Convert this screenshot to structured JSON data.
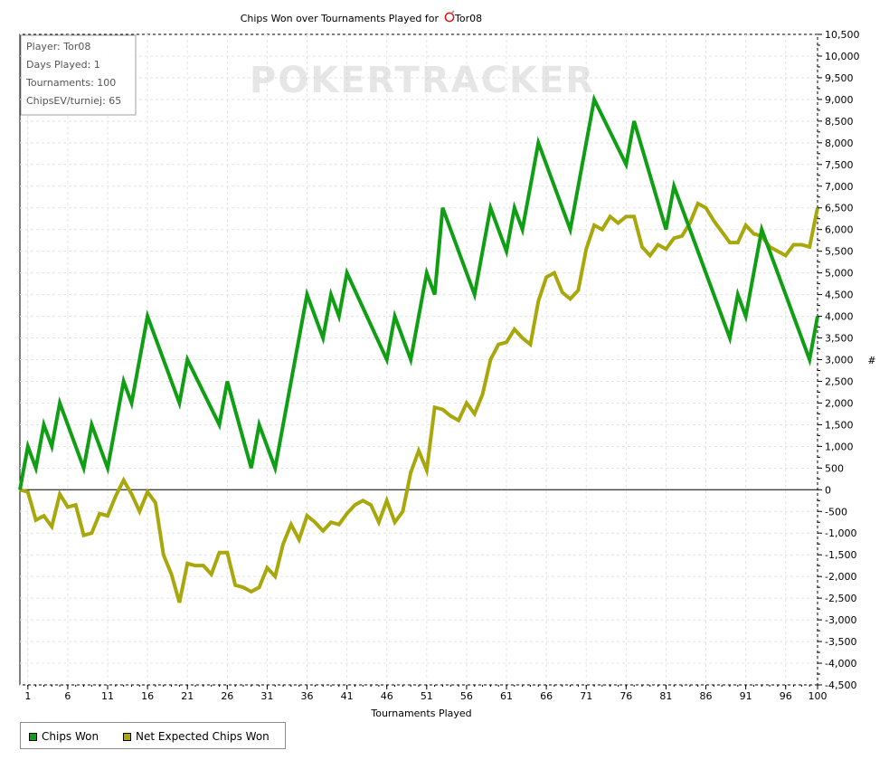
{
  "chart_data": {
    "type": "line",
    "title": "Chips Won over Tournaments Played for",
    "player_name": "Tor08",
    "watermark": "POKERTRACKER",
    "xlabel": "Tournaments Played",
    "ylabel": "#",
    "xlim": [
      0,
      100
    ],
    "ylim": [
      -4500,
      10500
    ],
    "x_ticks": [
      1,
      6,
      11,
      16,
      21,
      26,
      31,
      36,
      41,
      46,
      51,
      56,
      61,
      66,
      71,
      76,
      81,
      86,
      91,
      96,
      100
    ],
    "y_ticks": [
      10500,
      10000,
      9500,
      9000,
      8500,
      8000,
      7500,
      7000,
      6500,
      6000,
      5500,
      5000,
      4500,
      4000,
      3500,
      3000,
      2500,
      2000,
      1500,
      1000,
      500,
      0,
      -500,
      -1000,
      -1500,
      -2000,
      -2500,
      -3000,
      -3500,
      -4000,
      -4500
    ],
    "y_tick_labels": [
      "10,500",
      "10,000",
      "9,500",
      "9,000",
      "8,500",
      "8,000",
      "7,500",
      "7,000",
      "6,500",
      "6,000",
      "5,500",
      "5,000",
      "4,500",
      "4,000",
      "3,500",
      "3,000",
      "2,500",
      "2,000",
      "1,500",
      "1,000",
      "500",
      "0",
      "-500",
      "-1,000",
      "-1,500",
      "-2,000",
      "-2,500",
      "-3,000",
      "-3,500",
      "-4,000",
      "-4,500"
    ],
    "grid": true,
    "legend_position": "bottom-left",
    "series": [
      {
        "name": "Chips Won",
        "color": "#0f9e14",
        "x": [
          0,
          1,
          2,
          3,
          4,
          5,
          8,
          9,
          11,
          13,
          14,
          16,
          20,
          21,
          25,
          26,
          29,
          30,
          32,
          36,
          38,
          39,
          40,
          41,
          46,
          47,
          49,
          51,
          52,
          53,
          57,
          59,
          61,
          62,
          63,
          65,
          69,
          72,
          76,
          77,
          81,
          82,
          89,
          90,
          91,
          93,
          99,
          100
        ],
        "y": [
          0,
          1000,
          500,
          1500,
          1000,
          2000,
          500,
          1500,
          500,
          2500,
          2000,
          4000,
          2000,
          3000,
          1500,
          2500,
          500,
          1500,
          500,
          4500,
          3500,
          4500,
          4000,
          5000,
          3000,
          4000,
          3000,
          5000,
          4500,
          6500,
          4500,
          6500,
          5500,
          6500,
          6000,
          8000,
          6000,
          9000,
          7500,
          8500,
          6000,
          7000,
          3500,
          4500,
          4000,
          6000,
          3000,
          4000
        ]
      },
      {
        "name": "Net Expected Chips Won",
        "color": "#a8a80c",
        "x": [
          0,
          1,
          2,
          3,
          4,
          5,
          6,
          7,
          8,
          9,
          10,
          11,
          12,
          13,
          14,
          15,
          16,
          17,
          18,
          19,
          20,
          21,
          22,
          23,
          24,
          25,
          26,
          27,
          28,
          29,
          30,
          31,
          32,
          33,
          34,
          35,
          36,
          37,
          38,
          39,
          40,
          41,
          42,
          43,
          44,
          45,
          46,
          47,
          48,
          49,
          50,
          51,
          52,
          53,
          54,
          55,
          56,
          57,
          58,
          59,
          60,
          61,
          62,
          63,
          64,
          65,
          66,
          67,
          68,
          69,
          70,
          71,
          72,
          73,
          74,
          75,
          76,
          77,
          78,
          79,
          80,
          81,
          82,
          83,
          84,
          85,
          86,
          87,
          88,
          89,
          90,
          91,
          92,
          93,
          94,
          95,
          96,
          97,
          98,
          99,
          100
        ],
        "y": [
          0,
          -50,
          -700,
          -600,
          -850,
          -100,
          -400,
          -350,
          -1050,
          -1000,
          -550,
          -600,
          -150,
          220,
          -100,
          -500,
          -50,
          -300,
          -1500,
          -1950,
          -2600,
          -1700,
          -1750,
          -1750,
          -1950,
          -1450,
          -1450,
          -2200,
          -2250,
          -2350,
          -2250,
          -1800,
          -2000,
          -1250,
          -800,
          -1150,
          -600,
          -750,
          -950,
          -750,
          -800,
          -550,
          -350,
          -250,
          -350,
          -750,
          -250,
          -750,
          -500,
          400,
          900,
          450,
          1900,
          1850,
          1700,
          1600,
          2000,
          1750,
          2200,
          3000,
          3350,
          3400,
          3700,
          3500,
          3350,
          4350,
          4900,
          5000,
          4550,
          4400,
          4600,
          5550,
          6100,
          6000,
          6300,
          6150,
          6300,
          6300,
          5600,
          5400,
          5650,
          5550,
          5800,
          5850,
          6150,
          6600,
          6500,
          6200,
          5950,
          5700,
          5700,
          6100,
          5900,
          5850,
          5600,
          5500,
          5400,
          5650,
          5650,
          5600,
          6500
        ]
      }
    ],
    "info_box": [
      "Player: Tor08",
      "Days Played: 1",
      "Tournaments: 100",
      "ChipsEV/turniej: 65"
    ]
  }
}
